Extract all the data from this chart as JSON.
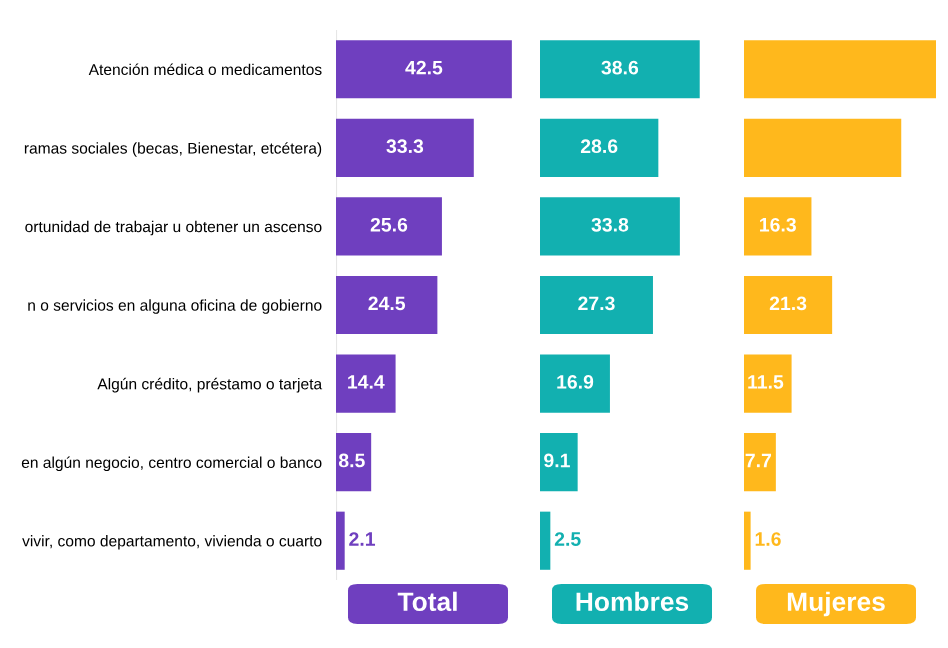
{
  "chart_data": [
    {
      "type": "bar",
      "orientation": "horizontal",
      "tick_labels": "y",
      "xlabel": "Total",
      "color": "#6f3fbf",
      "categories": [
        "Atención médica o medicamentos",
        "ramas sociales (becas, Bienestar, etcétera)",
        "ortunidad de trabajar u obtener un ascenso",
        "n o servicios en alguna oficina de gobierno",
        "Algún crédito, préstamo o tarjeta",
        "en algún negocio, centro comercial o banco",
        "vivir, como departamento, vivienda o cuarto"
      ],
      "values": [
        42.5,
        33.3,
        25.6,
        24.5,
        14.4,
        8.5,
        2.1
      ],
      "data_labels": true
    },
    {
      "type": "bar",
      "orientation": "horizontal",
      "tick_labels": false,
      "xlabel": "Hombres",
      "color": "#12b0b0",
      "categories": [
        null,
        null,
        null,
        null,
        null,
        null,
        null
      ],
      "values": [
        38.6,
        28.6,
        33.8,
        27.3,
        16.9,
        9.1,
        2.5
      ],
      "data_labels": true
    },
    {
      "type": "bar",
      "orientation": "horizontal",
      "tick_labels": false,
      "xlabel": "Mujeres",
      "color": "#ffb81c",
      "categories": [
        null,
        null,
        null,
        null,
        null,
        null,
        null
      ],
      "values": [
        46.4,
        38.0,
        16.3,
        21.3,
        11.5,
        7.7,
        1.6
      ],
      "value_labels": [
        null,
        null,
        "16.3",
        "21.3",
        "11.5",
        "7.7",
        "1.6"
      ]
    }
  ]
}
